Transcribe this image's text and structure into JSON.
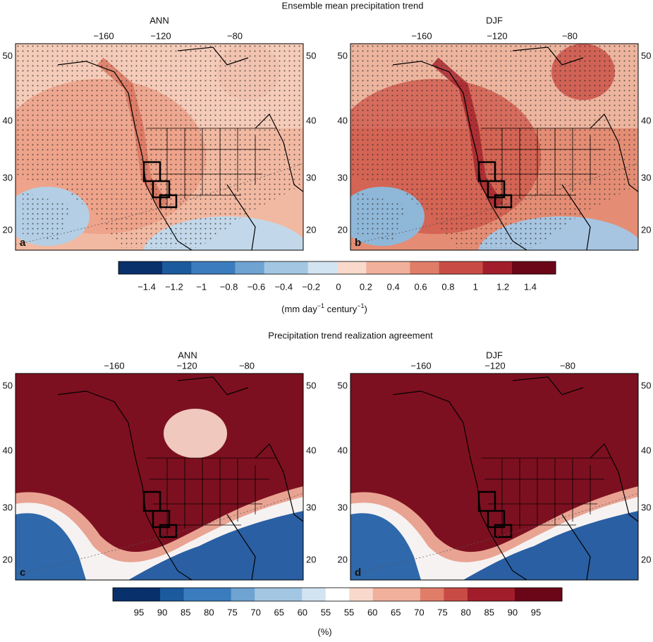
{
  "titles": [
    "Ensemble mean precipitation trend",
    "Precipitation trend realization agreement"
  ],
  "panels": [
    {
      "title": "ANN",
      "label": "a",
      "lon_ticks": [
        "−160",
        "−120",
        "−80"
      ],
      "lat_ticks": [
        "50",
        "40",
        "30",
        "20"
      ]
    },
    {
      "title": "DJF",
      "label": "b",
      "lon_ticks": [
        "−160",
        "−120",
        "−80"
      ],
      "lat_ticks": [
        "50",
        "40",
        "30",
        "20"
      ]
    },
    {
      "title": "ANN",
      "label": "c",
      "lon_ticks": [
        "−160",
        "−120",
        "−80"
      ],
      "lat_ticks": [
        "50",
        "40",
        "30",
        "20"
      ]
    },
    {
      "title": "DJF",
      "label": "d",
      "lon_ticks": [
        "−160",
        "−120",
        "−80"
      ],
      "lat_ticks": [
        "50",
        "40",
        "30",
        "20"
      ]
    }
  ],
  "colorbars": [
    {
      "labels": [
        "−1.4",
        "−1.2",
        "−1",
        "−0.8",
        "−0.6",
        "−0.4",
        "−0.2",
        "0",
        "0.2",
        "0.4",
        "0.6",
        "0.8",
        "1",
        "1.2",
        "1.4"
      ],
      "unit": {
        "open": "(mm day",
        "sup1": "−1",
        "mid": " century",
        "sup2": "−1",
        "close": ")"
      }
    },
    {
      "labels": [
        "95",
        "90",
        "85",
        "80",
        "75",
        "70",
        "65",
        "60",
        "55",
        "55",
        "60",
        "65",
        "70",
        "75",
        "80",
        "85",
        "90",
        "95"
      ],
      "unit": {
        "open": "(%)"
      }
    }
  ]
}
